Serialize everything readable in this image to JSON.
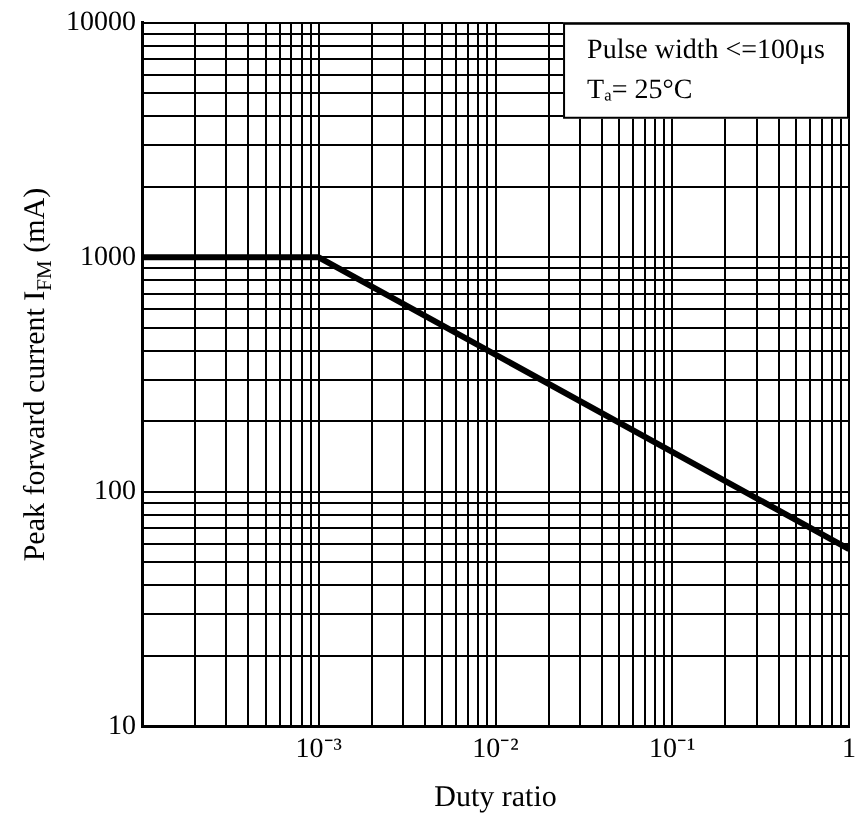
{
  "chart_data": {
    "type": "line",
    "xlabel": "Duty ratio",
    "ylabel": "Peak forward current I$_{FM}$ (mA)",
    "annotations": [
      "Pulse width <=100μs",
      "Tₐ= 25°C"
    ],
    "x": [
      0.0001,
      0.001,
      1
    ],
    "series": [
      {
        "color": "#000000",
        "values": [
          1000,
          1000,
          57
        ]
      }
    ],
    "log": "xy",
    "grid": true,
    "xlim": [
      0.0001,
      1
    ],
    "xticks": [
      {
        "value": 0.0001,
        "label": null
      },
      {
        "value": 0.0002,
        "label": null
      },
      {
        "value": 0.0003,
        "label": null
      },
      {
        "value": 0.0004,
        "label": null
      },
      {
        "value": 0.0005,
        "label": null
      },
      {
        "value": 0.0006,
        "label": null
      },
      {
        "value": 0.0007,
        "label": null
      },
      {
        "value": 0.0008,
        "label": null
      },
      {
        "value": 0.0009,
        "label": null
      },
      {
        "value": 0.001,
        "label": "10⁻³"
      },
      {
        "value": 0.002,
        "label": null
      },
      {
        "value": 0.003,
        "label": null
      },
      {
        "value": 0.004,
        "label": null
      },
      {
        "value": 0.005,
        "label": null
      },
      {
        "value": 0.006,
        "label": null
      },
      {
        "value": 0.007,
        "label": null
      },
      {
        "value": 0.008,
        "label": null
      },
      {
        "value": 0.009,
        "label": null
      },
      {
        "value": 0.01,
        "label": "10⁻²"
      },
      {
        "value": 0.02,
        "label": null
      },
      {
        "value": 0.03,
        "label": null
      },
      {
        "value": 0.04,
        "label": null
      },
      {
        "value": 0.05,
        "label": null
      },
      {
        "value": 0.06,
        "label": null
      },
      {
        "value": 0.07,
        "label": null
      },
      {
        "value": 0.08,
        "label": null
      },
      {
        "value": 0.09,
        "label": null
      },
      {
        "value": 0.1,
        "label": "10⁻¹"
      },
      {
        "value": 0.2,
        "label": null
      },
      {
        "value": 0.3,
        "label": null
      },
      {
        "value": 0.4,
        "label": null
      },
      {
        "value": 0.5,
        "label": null
      },
      {
        "value": 0.6,
        "label": null
      },
      {
        "value": 0.7,
        "label": null
      },
      {
        "value": 0.8,
        "label": null
      },
      {
        "value": 0.9,
        "label": null
      },
      1
    ],
    "ylim": [
      10,
      10000
    ],
    "yticks": [
      10,
      {
        "value": 20,
        "label": null
      },
      {
        "value": 30,
        "label": null
      },
      {
        "value": 40,
        "label": null
      },
      {
        "value": 50,
        "label": null
      },
      {
        "value": 60,
        "label": null
      },
      {
        "value": 70,
        "label": null
      },
      {
        "value": 80,
        "label": null
      },
      {
        "value": 90,
        "label": null
      },
      100,
      {
        "value": 200,
        "label": null
      },
      {
        "value": 300,
        "label": null
      },
      {
        "value": 400,
        "label": null
      },
      {
        "value": 500,
        "label": null
      },
      {
        "value": 600,
        "label": null
      },
      {
        "value": 700,
        "label": null
      },
      {
        "value": 800,
        "label": null
      },
      {
        "value": 900,
        "label": null
      },
      1000,
      {
        "value": 2000,
        "label": null
      },
      {
        "value": 3000,
        "label": null
      },
      {
        "value": 4000,
        "label": null
      },
      {
        "value": 5000,
        "label": null
      },
      {
        "value": 6000,
        "label": null
      },
      {
        "value": 7000,
        "label": null
      },
      {
        "value": 8000,
        "label": null
      },
      {
        "value": 9000,
        "label": null
      },
      10000
    ]
  }
}
